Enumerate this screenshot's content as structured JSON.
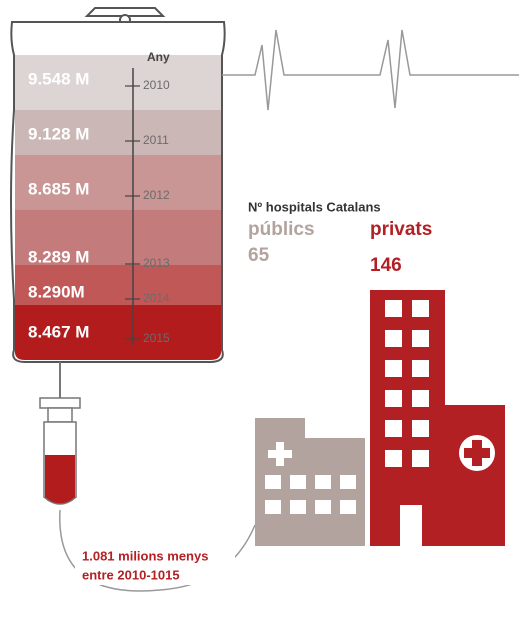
{
  "bag": {
    "axis_label": "Any",
    "rows": [
      {
        "value": "9.548 M",
        "year": "2010"
      },
      {
        "value": "9.128 M",
        "year": "2011"
      },
      {
        "value": "8.685 M",
        "year": "2012"
      },
      {
        "value": "8.289 M",
        "year": "2013"
      },
      {
        "value": "8.290M",
        "year": "2014"
      },
      {
        "value": "8.467 M",
        "year": "2015"
      }
    ]
  },
  "hospitals": {
    "title": "Nº hospitals Catalans",
    "public": {
      "label": "públics",
      "count": "65"
    },
    "private": {
      "label": "privats",
      "count": "146"
    }
  },
  "note": [
    "1.081 milions menys",
    "entre 2010-1015"
  ]
}
